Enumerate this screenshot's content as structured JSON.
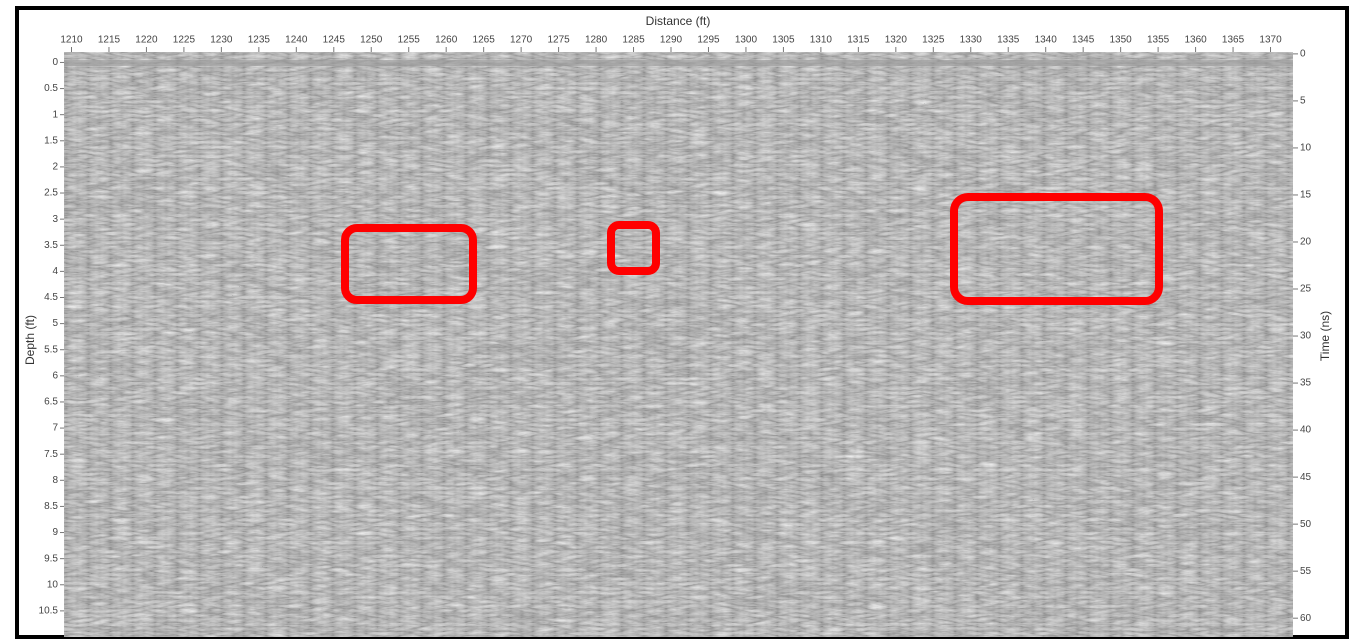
{
  "chart_data": {
    "type": "radargram",
    "xlabel": "Distance (ft)",
    "ylabel": "Depth (ft)",
    "y2label": "Time (ns)",
    "xlim": [
      1209,
      1373
    ],
    "xticks": [
      1210,
      1215,
      1220,
      1225,
      1230,
      1235,
      1240,
      1245,
      1250,
      1255,
      1260,
      1265,
      1270,
      1275,
      1280,
      1285,
      1290,
      1295,
      1300,
      1305,
      1310,
      1315,
      1320,
      1325,
      1330,
      1335,
      1340,
      1345,
      1350,
      1355,
      1360,
      1365,
      1370
    ],
    "ylim": [
      -0.2,
      11
    ],
    "yticks": [
      0,
      0.5,
      1,
      1.5,
      2,
      2.5,
      3,
      3.5,
      4,
      4.5,
      5,
      5.5,
      6,
      6.5,
      7,
      7.5,
      8,
      8.5,
      9,
      9.5,
      10,
      10.5
    ],
    "y2lim": [
      -0.2,
      62
    ],
    "y2ticks": [
      0,
      5,
      10,
      15,
      20,
      25,
      30,
      35,
      40,
      45,
      50,
      55,
      60
    ]
  }
}
